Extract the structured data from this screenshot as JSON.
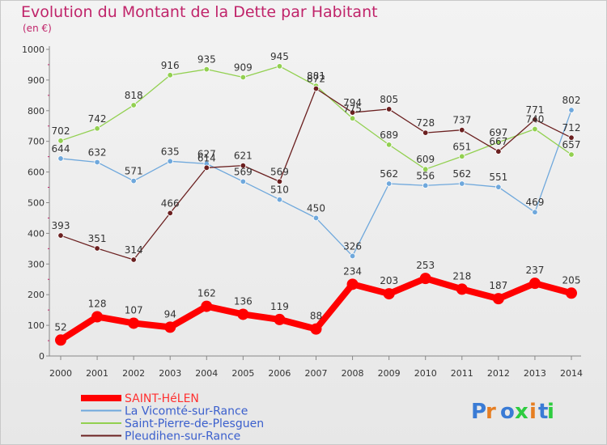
{
  "chart_data": {
    "type": "line",
    "title": "Evolution du Montant de la Dette par Habitant",
    "subtitle": "(en €)",
    "x": [
      "2000",
      "2001",
      "2002",
      "2003",
      "2004",
      "2005",
      "2006",
      "2007",
      "2008",
      "2009",
      "2010",
      "2011",
      "2012",
      "2013",
      "2014"
    ],
    "ylim": [
      0,
      1000
    ],
    "yticks": [
      0,
      100,
      200,
      300,
      400,
      500,
      600,
      700,
      800,
      900,
      1000
    ],
    "grid": false,
    "legend_position": "bottom-left",
    "series": [
      {
        "name": "SAINT-HéLEN",
        "color": "#ff0000",
        "values": [
          52,
          128,
          107,
          94,
          162,
          136,
          119,
          88,
          234,
          203,
          253,
          218,
          187,
          237,
          205
        ]
      },
      {
        "name": "La Vicomté-sur-Rance",
        "color": "#6fa8dc",
        "values": [
          644,
          632,
          571,
          635,
          627,
          569,
          510,
          450,
          326,
          562,
          556,
          562,
          551,
          469,
          802
        ]
      },
      {
        "name": "Saint-Pierre-de-Plesguen",
        "color": "#92d050",
        "values": [
          702,
          742,
          818,
          916,
          935,
          909,
          945,
          881,
          775,
          689,
          609,
          651,
          697,
          740,
          657
        ]
      },
      {
        "name": "Pleudihen-sur-Rance",
        "color": "#6b2020",
        "values": [
          393,
          351,
          314,
          466,
          614,
          621,
          569,
          872,
          794,
          805,
          728,
          737,
          667,
          771,
          712
        ]
      }
    ]
  },
  "brand": {
    "logo_text": "Proxiti"
  }
}
